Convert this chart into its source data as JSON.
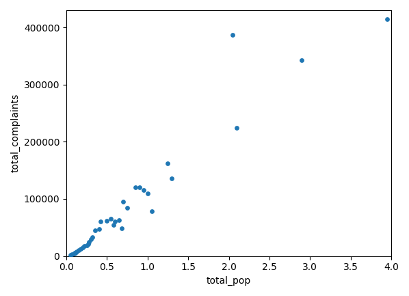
{
  "x": [
    500000,
    700000,
    900000,
    1000000,
    1100000,
    1200000,
    1300000,
    1500000,
    1800000,
    2000000,
    2200000,
    2500000,
    2700000,
    2800000,
    3000000,
    3200000,
    3500000,
    4000000,
    4200000,
    5000000,
    5500000,
    5800000,
    6000000,
    6500000,
    6800000,
    7000000,
    7500000,
    8500000,
    9000000,
    9500000,
    10000000,
    10500000,
    12500000,
    13000000,
    20500000,
    21000000,
    29000000,
    39500000
  ],
  "y": [
    2000,
    3000,
    4000,
    5000,
    6000,
    7000,
    8000,
    10000,
    13000,
    15000,
    17000,
    19000,
    21000,
    25000,
    29000,
    33000,
    45000,
    47000,
    60000,
    62000,
    65000,
    55000,
    60000,
    63000,
    48000,
    95000,
    85000,
    120000,
    120000,
    115000,
    110000,
    78000,
    162000,
    136000,
    387000,
    224000,
    343000,
    415000
  ],
  "xlabel": "total_pop",
  "ylabel": "total_complaints",
  "dot_color": "#1f77b4",
  "dot_size": 15,
  "xlim": [
    0,
    40000000.0
  ],
  "ylim": [
    0,
    430000
  ],
  "yticks": [
    0,
    100000,
    200000,
    300000,
    400000
  ],
  "xticks": [
    0.0,
    5000000.0,
    10000000.0,
    15000000.0,
    20000000.0,
    25000000.0,
    30000000.0,
    35000000.0,
    40000000.0
  ],
  "background_color": "#ffffff"
}
